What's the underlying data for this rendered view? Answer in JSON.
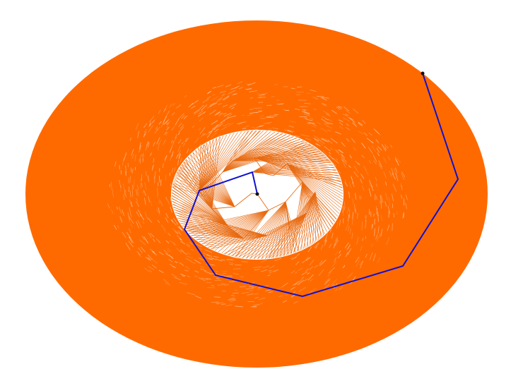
{
  "figure": {
    "background": "#ffffff",
    "fill_color": "#ff6a00",
    "line_color": "#e86a10",
    "path_color": "#1010d0",
    "endpoint_color": "#111111"
  },
  "path": {
    "segments": 9,
    "markers": [
      "start-point",
      "end-point"
    ]
  }
}
